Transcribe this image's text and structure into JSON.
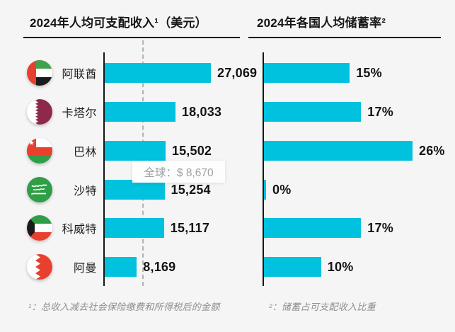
{
  "palette": {
    "bar": "#00c1de",
    "background": "#f5f5f6",
    "axis": "#161616",
    "dashed_line": "#b3b3b3",
    "tooltip_bg": "#fdfdfd",
    "tooltip_text": "#9ba0a4",
    "footnote_text": "#8e8e92"
  },
  "left_chart": {
    "title": "2024年人均可支配收入¹（美元）",
    "footnote": "¹：总收入减去社会保险缴费和所得税后的金额"
  },
  "right_chart": {
    "title": "2024年各国人均储蓄率²",
    "footnote": "²：储蓄占可支配收入比重"
  },
  "global_average": {
    "label": "全球：$ 8,670",
    "value": 8670
  },
  "countries": [
    {
      "name": "阿联酋",
      "flag": "uae-flag"
    },
    {
      "name": "卡塔尔",
      "flag": "qatar-flag"
    },
    {
      "name": "巴林",
      "flag": "oman-style-flag"
    },
    {
      "name": "沙特",
      "flag": "saudi-flag"
    },
    {
      "name": "科威特",
      "flag": "kuwait-flag"
    },
    {
      "name": "阿曼",
      "flag": "bahrain-style-flag"
    }
  ],
  "chart_data": [
    {
      "type": "bar",
      "orientation": "horizontal",
      "title": "2024年人均可支配收入¹（美元）",
      "categories": [
        "阿联酋",
        "卡塔尔",
        "巴林",
        "沙特",
        "科威特",
        "阿曼"
      ],
      "values": [
        27069,
        18033,
        15502,
        15254,
        15117,
        8169
      ],
      "value_labels": [
        "27,069",
        "18,033",
        "15,502",
        "15,254",
        "15,117",
        "8,169"
      ],
      "xlim": [
        0,
        30000
      ],
      "grid": false,
      "reference_line": {
        "label": "全球：$ 8,670",
        "value": 8670
      }
    },
    {
      "type": "bar",
      "orientation": "horizontal",
      "title": "2024年各国人均储蓄率²",
      "categories": [
        "阿联酋",
        "卡塔尔",
        "巴林",
        "沙特",
        "科威特",
        "阿曼"
      ],
      "values": [
        15,
        17,
        26,
        0,
        17,
        10
      ],
      "value_labels": [
        "15%",
        "17%",
        "26%",
        "0%",
        "17%",
        "10%"
      ],
      "xlim": [
        0,
        30
      ],
      "grid": false
    }
  ]
}
